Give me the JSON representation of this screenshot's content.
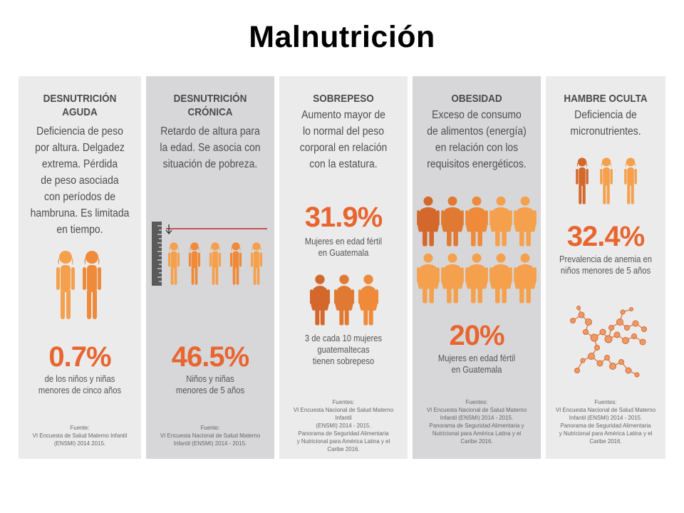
{
  "title": "Malnutrición",
  "columns": [
    {
      "heading": [
        "DESNUTRICIÓN",
        "AGUDA"
      ],
      "description": [
        "Deficiencia de peso",
        "por altura. Delgadez",
        "extrema. Pérdida",
        "de peso asociada",
        "con períodos de",
        "hambruna. Es limitada",
        "en tiempo."
      ],
      "stat": "0.7%",
      "stat_caption": [
        "de los niños y niñas",
        "menores de cinco años"
      ],
      "source": [
        "Fuente:",
        "VI Encuesta de Salud Materno Infantil",
        "(ENSMI) 2014 2015."
      ]
    },
    {
      "heading": [
        "DESNUTRICIÓN",
        "CRÓNICA"
      ],
      "description": [
        "Retardo de altura para",
        "la edad. Se asocia con",
        "situación de pobreza."
      ],
      "stat": "46.5%",
      "stat_caption": [
        "Niños y niñas",
        "menores de 5 años"
      ],
      "source": [
        "Fuente:",
        "VI Encuesta Nacional de Salud Materno",
        "Infantil (ENSMI) 2014 - 2015."
      ]
    },
    {
      "heading": [
        "SOBREPESO"
      ],
      "description": [
        "Aumento mayor de",
        "lo normal del peso",
        "corporal en relación",
        "con la estatura."
      ],
      "stat": "31.9%",
      "stat_caption": [
        "Mujeres en edad fértil",
        "en Guatemala"
      ],
      "secondary_caption": [
        "3 de cada 10 mujeres",
        "guatemaltecas",
        "tienen sobrepeso"
      ],
      "source": [
        "Fuentes:",
        "VI Encuesta Nacional de Salud Materno Infantil",
        "(ENSMI) 2014 - 2015.",
        "Panorama de Seguridad Alimentaria",
        "y Nutricional para América Latina y el",
        "Caribe 2016."
      ]
    },
    {
      "heading": [
        "OBESIDAD"
      ],
      "description": [
        "Exceso de consumo",
        "de alimentos (energía)",
        "en relación con los",
        "requisitos energéticos."
      ],
      "stat": "20%",
      "stat_caption": [
        "Mujeres en edad fértil",
        "en Guatemala"
      ],
      "source": [
        "Fuentes:",
        "VI Encuesta Nacional de Salud Materno",
        "Infantil (ENSMI) 2014 - 2015.",
        "Panorama de Seguridad Alimentaria y",
        "Nutricional para América Latina y el",
        "Caribe 2016."
      ]
    },
    {
      "heading": [
        "HAMBRE OCULTA"
      ],
      "description": [
        "Deficiencia de",
        "micronutrientes."
      ],
      "stat": "32.4%",
      "stat_caption": [
        "Prevalencia de anemia en",
        "niños menores de 5 años"
      ],
      "source": [
        "Fuentes:",
        "VI Encuesta Nacional de Salud Materno",
        "Infantil (ENSMI) 2014 - 2015.",
        "Panorama de Seguridad Alimentaria",
        "y Nutricional para América Latina y el",
        "Caribe 2016."
      ]
    }
  ],
  "icons": {
    "acute": "thin-children-icon",
    "chronic": "stunted-children-with-ruler-icon",
    "overweight": "overweight-women-icon",
    "obesity": "obese-people-icon",
    "hidden_hunger": "children-icon",
    "micronutrients": "molecule-network-icon"
  },
  "colors": {
    "accent": "#e8652f",
    "figure_light": "#f4a04d",
    "figure_mid": "#ee8a3a",
    "figure_dark": "#d4682c",
    "panel_light": "#ebebeb",
    "panel_dark": "#d7d7d9",
    "ruler_line": "#c0272d"
  }
}
